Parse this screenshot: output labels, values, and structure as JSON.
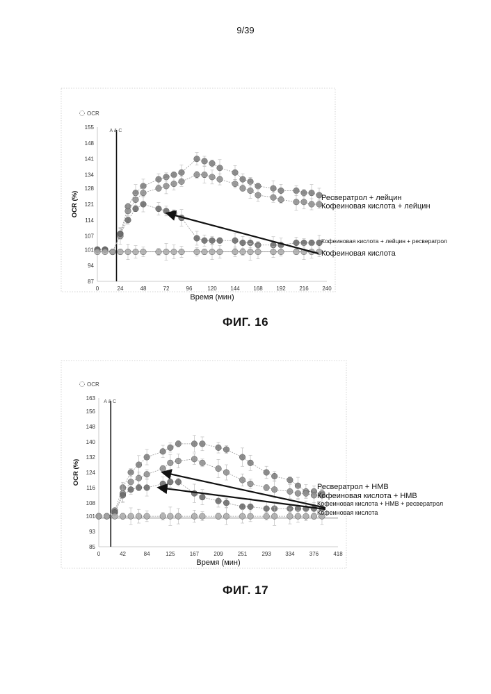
{
  "page": {
    "number": "9/39"
  },
  "figures": [
    {
      "caption": "ФИГ. 16"
    },
    {
      "caption": "ФИГ. 17"
    }
  ],
  "chart_data": [
    {
      "type": "line",
      "legend_label": "OCR",
      "xlabel": "Время (мин)",
      "ylabel": "OCR (%)",
      "xticks": [
        "0",
        "24",
        "48",
        "72",
        "96",
        "120",
        "144",
        "168",
        "192",
        "216",
        "240"
      ],
      "xlim": [
        0,
        240
      ],
      "yticks": [
        "87",
        "94",
        "101",
        "107",
        "114",
        "121",
        "128",
        "134",
        "141",
        "148",
        "155"
      ],
      "ylim": [
        87,
        155
      ],
      "injection_marker": {
        "label": "A & C",
        "x": 20
      },
      "annotations": [
        {
          "text": "Ресвератрол + лейцин",
          "point": [
            228,
            126
          ]
        },
        {
          "text": "Кофеиновая кислота + лейцин",
          "point": [
            228,
            122
          ]
        },
        {
          "text": "Кофеиновая кислота + лейцин + ресвератрол",
          "point": [
            228,
            104
          ]
        },
        {
          "text": "Кофеиновая кислота",
          "point": [
            228,
            100
          ],
          "arrow_to": [
            73,
            117
          ]
        }
      ],
      "x": [
        0,
        8,
        16,
        24,
        32,
        40,
        48,
        64,
        72,
        80,
        88,
        104,
        112,
        120,
        128,
        144,
        152,
        160,
        168,
        184,
        192,
        208,
        216,
        224,
        232
      ],
      "series": [
        {
          "values": [
            101,
            101,
            100,
            108,
            120,
            126,
            129,
            132,
            133,
            134,
            135,
            141,
            140,
            139,
            137,
            135,
            132,
            131,
            129,
            128,
            127,
            127,
            126,
            126,
            125
          ],
          "color": "#7a7a7a"
        },
        {
          "values": [
            101,
            101,
            100,
            107,
            118,
            123,
            126,
            128,
            129,
            130,
            131,
            134,
            134,
            133,
            132,
            130,
            128,
            127,
            125,
            124,
            123,
            122,
            122,
            121,
            121
          ],
          "color": "#8c8c8c"
        },
        {
          "values": [
            101,
            101,
            100,
            108,
            114,
            119,
            121,
            119,
            118,
            117,
            115,
            106,
            105,
            105,
            105,
            105,
            104,
            104,
            103,
            103,
            103,
            104,
            104,
            104,
            104
          ],
          "color": "#666666"
        },
        {
          "values": [
            100,
            100,
            100,
            100,
            100,
            100,
            100,
            100,
            100,
            100,
            100,
            100,
            100,
            100,
            100,
            100,
            100,
            100,
            100,
            100,
            100,
            100,
            100,
            100,
            100
          ],
          "color": "#aaaaaa"
        }
      ]
    },
    {
      "type": "line",
      "legend_label": "OCR",
      "xlabel": "Время (мин)",
      "ylabel": "OCR (%)",
      "xticks": [
        "0",
        "42",
        "84",
        "125",
        "167",
        "209",
        "251",
        "293",
        "334",
        "376",
        "418"
      ],
      "xlim": [
        0,
        418
      ],
      "yticks": [
        "85",
        "93",
        "101",
        "108",
        "116",
        "124",
        "132",
        "140",
        "148",
        "156",
        "163"
      ],
      "ylim": [
        85,
        163
      ],
      "injection_marker": {
        "label": "A & C",
        "x": 21
      },
      "annotations": [
        {
          "text": "Ресвератрол + HMB",
          "point": [
            398,
            116
          ]
        },
        {
          "text": "Кофеиновая кислота + HMB",
          "point": [
            398,
            112
          ]
        },
        {
          "text": "Кофеиновая кислота + HMB + ресвератрол",
          "point": [
            398,
            108
          ],
          "arrow_to": [
            105,
            116
          ]
        },
        {
          "text": "Кофеиновая кислота",
          "point": [
            398,
            104
          ]
        }
      ],
      "x": [
        0,
        14,
        28,
        42,
        56,
        70,
        84,
        112,
        125,
        139,
        167,
        181,
        209,
        223,
        251,
        265,
        293,
        307,
        334,
        348,
        362,
        376,
        390
      ],
      "series": [
        {
          "values": [
            101,
            101,
            104,
            116,
            124,
            128,
            132,
            135,
            137,
            139,
            139,
            139,
            137,
            136,
            132,
            129,
            124,
            122,
            120,
            117,
            114,
            114,
            113
          ],
          "color": "#7a7a7a"
        },
        {
          "values": [
            101,
            101,
            103,
            113,
            119,
            121,
            123,
            126,
            129,
            130,
            131,
            129,
            126,
            124,
            120,
            118,
            116,
            115,
            114,
            113,
            113,
            112,
            112
          ],
          "color": "#8c8c8c"
        },
        {
          "values": [
            101,
            101,
            103,
            112,
            115,
            116,
            116,
            118,
            119,
            119,
            113,
            111,
            109,
            108,
            106,
            106,
            105,
            105,
            105,
            105,
            105,
            105,
            105
          ],
          "color": "#666666"
        },
        {
          "values": [
            101,
            101,
            101,
            101,
            101,
            101,
            101,
            101,
            101,
            101,
            101,
            101,
            101,
            101,
            101,
            101,
            101,
            101,
            101,
            101,
            101,
            101,
            101
          ],
          "color": "#aaaaaa"
        }
      ]
    }
  ]
}
